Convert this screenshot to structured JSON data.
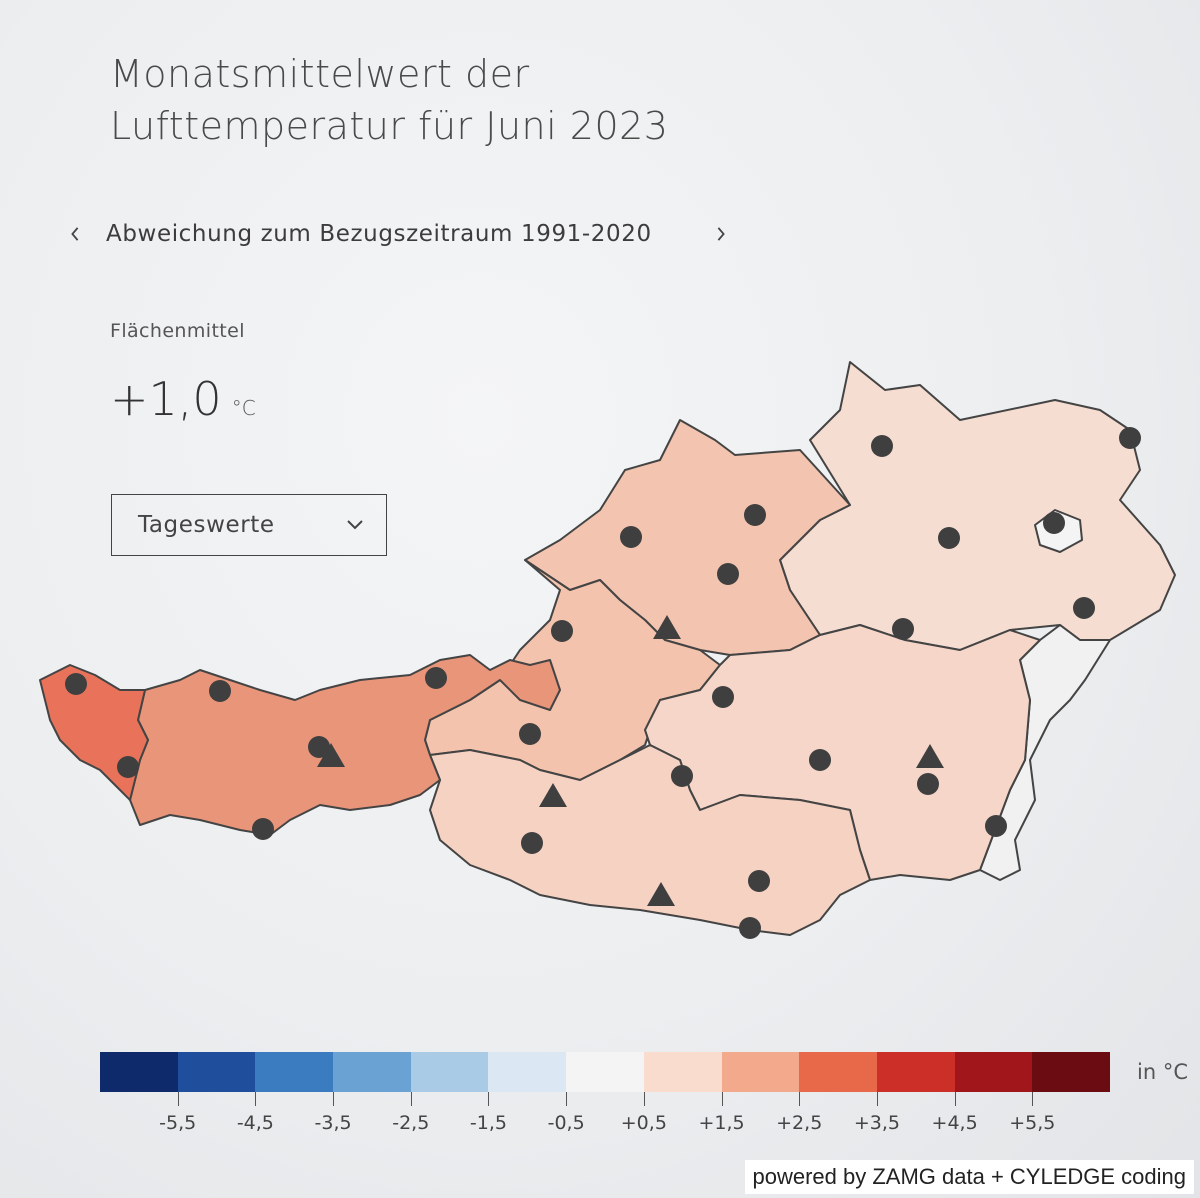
{
  "title": {
    "line1": "Monatsmittelwert der",
    "line2": "Lufttemperatur für Juni 2023"
  },
  "nav": {
    "prev_icon": "chevron-left-icon",
    "label": "Abweichung zum Bezugszeitraum 1991-2020",
    "next_icon": "chevron-right-icon"
  },
  "area_mean": {
    "label": "Flächenmittel",
    "value": "+1,0",
    "unit": "°C"
  },
  "dropdown": {
    "selected": "Tageswerte",
    "icon": "chevron-down-icon"
  },
  "legend": {
    "colors": [
      "#0e2a6b",
      "#1f4f9c",
      "#3b7cc0",
      "#6aa2d4",
      "#a9cbe6",
      "#dbe8f3",
      "#f4f4f4",
      "#f9dccd",
      "#f2a98c",
      "#e8684a",
      "#cc2f27",
      "#a1161b",
      "#6b0c12"
    ],
    "ticks": [
      "-5,5",
      "-4,5",
      "-3,5",
      "-2,5",
      "-1,5",
      "-0,5",
      "+0,5",
      "+1,5",
      "+2,5",
      "+3,5",
      "+4,5",
      "+5,5"
    ],
    "unit": "in °C"
  },
  "credit": "powered by ZAMG data + CYLEDGE coding",
  "map": {
    "region_colors": {
      "vorarlberg": "#e8735a",
      "tirol": "#e8957a",
      "salzburg": "#f3c3ad",
      "kaernten": "#f5d2c2",
      "oberoesterreich": "#f3c4af",
      "steiermark": "#f5d6c8",
      "niederoesterreich": "#f6ddd1",
      "wien": "#f4f4f4",
      "burgenland": "#f1f1f1",
      "marker": "#3f3f3f"
    }
  }
}
